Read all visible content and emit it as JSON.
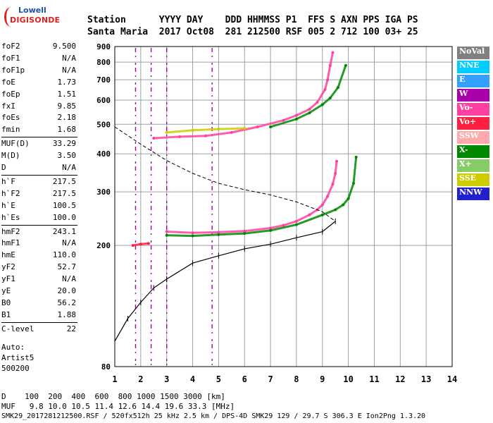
{
  "logo": {
    "line1": "Lowell",
    "line2": "DIGISONDE"
  },
  "header": {
    "line1": "Station      YYYY DAY    DDD HHMMSS P1  FFS S AXN PPS IGA PS",
    "line2": "Santa Maria  2017 Oct08  281 212500 RSF 005 2 712 100 03+ 25"
  },
  "params": [
    {
      "label": "foF2",
      "value": "9.500"
    },
    {
      "label": "foF1",
      "value": "N/A"
    },
    {
      "label": "foF1p",
      "value": "N/A"
    },
    {
      "label": "foE",
      "value": "1.73"
    },
    {
      "label": "foEp",
      "value": "1.51"
    },
    {
      "label": "fxI",
      "value": "9.85"
    },
    {
      "label": "foEs",
      "value": "2.18"
    },
    {
      "label": "fmin",
      "value": "1.68"
    },
    {
      "label": "MUF(D)",
      "value": "33.29"
    },
    {
      "label": "M(D)",
      "value": "3.50"
    },
    {
      "label": "D",
      "value": "N/A"
    },
    {
      "label": "h`F",
      "value": "217.5"
    },
    {
      "label": "h`F2",
      "value": "217.5"
    },
    {
      "label": "h`E",
      "value": "100.5"
    },
    {
      "label": "h`Es",
      "value": "100.0"
    },
    {
      "label": "hmF2",
      "value": "243.1"
    },
    {
      "label": "hmF1",
      "value": "N/A"
    },
    {
      "label": "hmE",
      "value": "110.0"
    },
    {
      "label": "yF2",
      "value": "52.7"
    },
    {
      "label": "yF1",
      "value": "N/A"
    },
    {
      "label": "yE",
      "value": "20.0"
    },
    {
      "label": "B0",
      "value": "56.2"
    },
    {
      "label": "B1",
      "value": "1.88"
    },
    {
      "label": "C-level",
      "value": "22"
    }
  ],
  "auto": {
    "line1": "Auto:",
    "line2": "Artist5",
    "line3": "500200"
  },
  "legend": [
    {
      "label": "NoVal",
      "color": "#808080"
    },
    {
      "label": "NNE",
      "color": "#00ccff"
    },
    {
      "label": "E",
      "color": "#33a0ff"
    },
    {
      "label": "W",
      "color": "#aa00aa"
    },
    {
      "label": "Vo-",
      "color": "#ff40a0"
    },
    {
      "label": "Vo+",
      "color": "#ff2040"
    },
    {
      "label": "SSW",
      "color": "#ffaaaa"
    },
    {
      "label": "X-",
      "color": "#008800"
    },
    {
      "label": "X+",
      "color": "#88cc66"
    },
    {
      "label": "SSE",
      "color": "#cccc00"
    },
    {
      "label": "NNW",
      "color": "#2020cc"
    }
  ],
  "footer": {
    "line1": "D    100  200  400  600  800 1000 1500 3000 [km]",
    "line2": "MUF   9.8 10.0 10.5 11.4 12.6 14.4 19.6 33.3 [MHz]",
    "line3": "SMK29_2017281212500.RSF / 520fx512h 25 kHz 2.5 km / DPS-4D SMK29 129 / 29.7 S 306.3 E Ion2Png 1.3.20"
  },
  "chart_data": {
    "type": "scatter",
    "title": "",
    "xlabel": "",
    "ylabel": "",
    "xlim": [
      1,
      14
    ],
    "ylim": [
      80,
      900
    ],
    "x_scale": "linear",
    "y_scale": "log",
    "x_ticks": [
      1,
      2,
      3,
      4,
      5,
      6,
      7,
      8,
      9,
      10,
      11,
      12,
      13,
      14
    ],
    "y_ticks": [
      80,
      200,
      300,
      400,
      500,
      600,
      700,
      800,
      900
    ],
    "grid": true,
    "legend_position": "right",
    "series": [
      {
        "name": "Vo-",
        "color": "#ff40a0",
        "points": [
          [
            3.0,
            222
          ],
          [
            4.0,
            220
          ],
          [
            5.0,
            221
          ],
          [
            6.0,
            223
          ],
          [
            7.0,
            228
          ],
          [
            7.5,
            233
          ],
          [
            8.0,
            240
          ],
          [
            8.5,
            252
          ],
          [
            8.8,
            262
          ],
          [
            9.0,
            272
          ],
          [
            9.2,
            290
          ],
          [
            9.4,
            318
          ],
          [
            9.5,
            345
          ],
          [
            9.55,
            378
          ]
        ]
      },
      {
        "name": "X-",
        "color": "#008800",
        "points": [
          [
            3.0,
            216
          ],
          [
            4.0,
            215
          ],
          [
            5.0,
            217
          ],
          [
            6.0,
            219
          ],
          [
            7.0,
            224
          ],
          [
            8.0,
            234
          ],
          [
            9.0,
            252
          ],
          [
            9.5,
            262
          ],
          [
            9.8,
            272
          ],
          [
            10.0,
            285
          ],
          [
            10.2,
            320
          ],
          [
            10.3,
            390
          ]
        ]
      },
      {
        "name": "Vo- F2 multihop",
        "color": "#ff40a0",
        "points": [
          [
            2.5,
            450
          ],
          [
            3.5,
            455
          ],
          [
            4.5,
            458
          ],
          [
            5.5,
            470
          ],
          [
            6.5,
            490
          ],
          [
            7.5,
            515
          ],
          [
            8.0,
            535
          ],
          [
            8.5,
            560
          ],
          [
            8.8,
            590
          ],
          [
            9.1,
            650
          ],
          [
            9.2,
            700
          ],
          [
            9.3,
            780
          ],
          [
            9.4,
            860
          ]
        ]
      },
      {
        "name": "X- F2 multihop",
        "color": "#008800",
        "points": [
          [
            7.0,
            490
          ],
          [
            8.0,
            520
          ],
          [
            8.5,
            545
          ],
          [
            9.0,
            580
          ],
          [
            9.3,
            610
          ],
          [
            9.6,
            660
          ],
          [
            9.9,
            780
          ]
        ]
      },
      {
        "name": "SSE",
        "color": "#cccc00",
        "points": [
          [
            3.0,
            470
          ],
          [
            4.0,
            478
          ],
          [
            5.0,
            482
          ],
          [
            6.0,
            485
          ]
        ]
      },
      {
        "name": "Es",
        "color": "#ff2040",
        "points": [
          [
            1.7,
            200
          ],
          [
            2.0,
            202
          ],
          [
            2.3,
            203
          ]
        ]
      }
    ],
    "profile": {
      "name": "profile",
      "color": "#000000",
      "points": [
        [
          1.0,
          97
        ],
        [
          1.5,
          115
        ],
        [
          2.0,
          130
        ],
        [
          2.5,
          145
        ],
        [
          3.0,
          155
        ],
        [
          4.0,
          175
        ],
        [
          5.0,
          185
        ],
        [
          6.0,
          195
        ],
        [
          7.0,
          202
        ],
        [
          8.0,
          212
        ],
        [
          9.0,
          222
        ],
        [
          9.5,
          240
        ]
      ]
    },
    "muf_curve": {
      "name": "MUF",
      "color": "#000000",
      "dash": true,
      "points": [
        [
          1.0,
          490
        ],
        [
          2.0,
          430
        ],
        [
          3.0,
          380
        ],
        [
          4.0,
          345
        ],
        [
          5.0,
          320
        ],
        [
          6.0,
          305
        ],
        [
          7.0,
          293
        ],
        [
          8.0,
          278
        ],
        [
          9.0,
          258
        ],
        [
          9.5,
          240
        ]
      ]
    },
    "vertical_traces": [
      {
        "x": 1.8,
        "color": "#aa00aa"
      },
      {
        "x": 2.4,
        "color": "#aa00aa"
      },
      {
        "x": 3.0,
        "color": "#aa00aa"
      },
      {
        "x": 4.75,
        "color": "#aa00aa"
      }
    ]
  }
}
